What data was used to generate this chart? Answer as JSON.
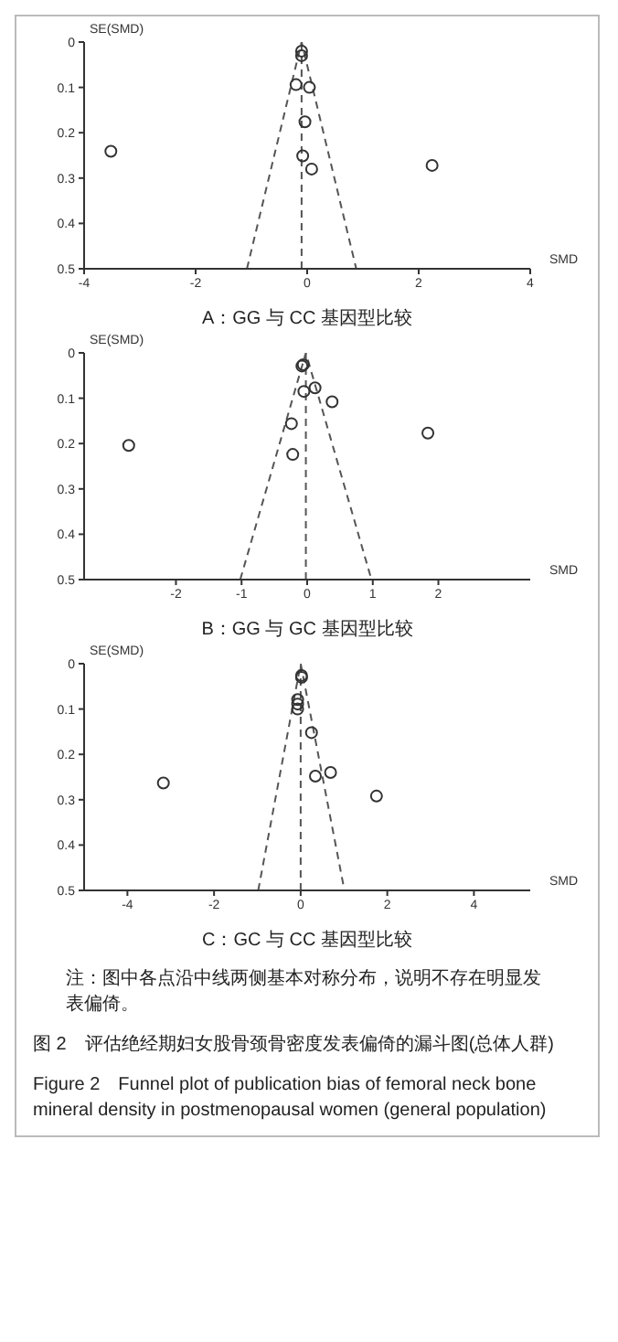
{
  "chart_data": [
    {
      "type": "scatter",
      "title": "A：GG 与 CC 基因型比较",
      "xlabel": "SMD",
      "ylabel": "SE(SMD)",
      "xlim": [
        -4,
        4
      ],
      "xticks": [
        -4,
        -2,
        0,
        2,
        4
      ],
      "ylim": [
        0.5,
        0
      ],
      "yticks": [
        0,
        0.1,
        0.2,
        0.3,
        0.4,
        0.5
      ],
      "marker": "circle",
      "series": [
        {
          "color": "#333333",
          "x": [
            -0.1,
            -0.1,
            -0.2,
            0.04,
            -0.04,
            -3.52,
            -0.08,
            0.08,
            2.24
          ],
          "values": [
            0.02,
            0.03,
            0.094,
            0.1,
            0.176,
            0.241,
            0.251,
            0.28,
            0.272
          ]
        },
        {
          "type": "line",
          "color": "#555555",
          "line_style": "dashed",
          "marker": "none",
          "x": [
            -1.08,
            -0.1,
            0.88
          ],
          "values": [
            0.5,
            0,
            0.5
          ]
        }
      ],
      "ref_lines": [
        {
          "axis": "x",
          "value": -0.1,
          "color": "#555555",
          "line_style": "dashed"
        }
      ]
    },
    {
      "type": "scatter",
      "title": "B：GG 与 GC 基因型比较",
      "xlabel": "SMD",
      "ylabel": "SE(SMD)",
      "xlim": [
        -3.4,
        3.4
      ],
      "xticks": [
        -2,
        -1,
        0,
        1,
        2
      ],
      "ylim": [
        0.5,
        0
      ],
      "yticks": [
        0,
        0.1,
        0.2,
        0.3,
        0.4,
        0.5
      ],
      "marker": "circle",
      "series": [
        {
          "color": "#333333",
          "x": [
            -0.08,
            -0.06,
            0.12,
            -0.05,
            0.38,
            -0.24,
            1.84,
            -2.72,
            -0.22
          ],
          "values": [
            0.029,
            0.026,
            0.077,
            0.085,
            0.108,
            0.156,
            0.177,
            0.204,
            0.224
          ]
        },
        {
          "type": "line",
          "color": "#555555",
          "line_style": "dashed",
          "marker": "none",
          "x": [
            -1.02,
            -0.02,
            0.98
          ],
          "values": [
            0.5,
            0,
            0.5
          ]
        }
      ],
      "ref_lines": [
        {
          "axis": "x",
          "value": -0.02,
          "color": "#555555",
          "line_style": "dashed"
        }
      ]
    },
    {
      "type": "scatter",
      "title": "C：GC 与 CC 基因型比较",
      "xlabel": "SMD",
      "ylabel": "SE(SMD)",
      "xlim": [
        -5,
        5.3
      ],
      "xticks": [
        -4,
        -2,
        0,
        2,
        4
      ],
      "ylim": [
        0.5,
        0
      ],
      "yticks": [
        0,
        0.1,
        0.2,
        0.3,
        0.4,
        0.5
      ],
      "marker": "circle",
      "series": [
        {
          "color": "#333333",
          "x": [
            0.02,
            0.02,
            -0.07,
            -0.07,
            -0.07,
            0.25,
            0.34,
            0.69,
            -3.17,
            1.75
          ],
          "values": [
            0.026,
            0.03,
            0.079,
            0.089,
            0.1,
            0.152,
            0.248,
            0.24,
            0.263,
            0.292
          ]
        },
        {
          "type": "line",
          "color": "#555555",
          "line_style": "dashed",
          "marker": "none",
          "x": [
            -0.98,
            0,
            1.01
          ],
          "values": [
            0.5,
            0,
            0.5
          ]
        }
      ],
      "ref_lines": [
        {
          "axis": "x",
          "value": 0,
          "color": "#555555",
          "line_style": "dashed"
        }
      ],
      "annotations": [
        "注：图中各点沿中线两侧基本对称分布，说明不存在明显发表偏倚。",
        "图 2　评估绝经期妇女股骨颈骨密度发表偏倚的漏斗图(总体人群)",
        "Figure 2　Funnel plot of publication bias of femoral neck bone mineral density in postmenopausal women (general population)"
      ]
    }
  ]
}
